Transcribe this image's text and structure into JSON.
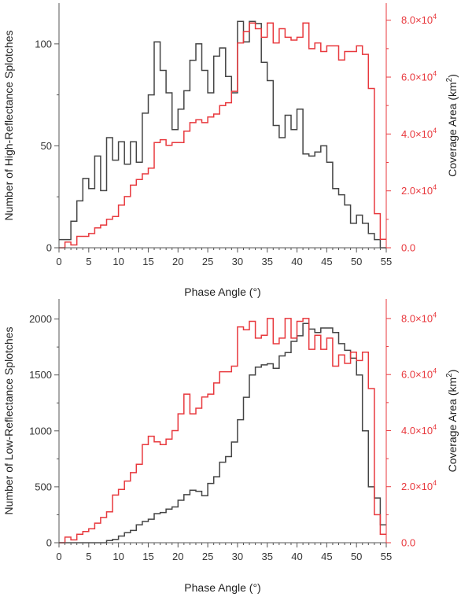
{
  "chart_data": [
    {
      "type": "histogram",
      "xlabel": "Phase Angle (°)",
      "ylabel_left": "Number of High-Reflectance Splotches",
      "ylabel_right": {
        "text": "Coverage Area (km",
        "sup": "2",
        "close": ")"
      },
      "xlim": [
        0,
        55
      ],
      "ylim_left": [
        0,
        120
      ],
      "ylim_right": [
        0,
        86000
      ],
      "x_ticks": [
        0,
        5,
        10,
        15,
        20,
        25,
        30,
        35,
        40,
        45,
        50,
        55
      ],
      "x_tick_labels": [
        "0",
        "5",
        "10",
        "15",
        "20",
        "25",
        "30",
        "35",
        "40",
        "45",
        "50",
        "55"
      ],
      "y_left_ticks": [
        0,
        50,
        100
      ],
      "y_left_tick_labels": [
        "0",
        "50",
        "100"
      ],
      "y_right_ticks": [
        0,
        20000,
        40000,
        60000,
        80000
      ],
      "y_right_tick_labels": [
        {
          "mant": "0.0",
          "exp": ""
        },
        {
          "mant": "2.0×10",
          "exp": "4"
        },
        {
          "mant": "4.0×10",
          "exp": "4"
        },
        {
          "mant": "6.0×10",
          "exp": "4"
        },
        {
          "mant": "8.0×10",
          "exp": "4"
        }
      ],
      "bin_width": 1,
      "series": [
        {
          "axis": "left",
          "color": "#444444",
          "x": [
            0,
            1,
            2,
            3,
            4,
            5,
            6,
            7,
            8,
            9,
            10,
            11,
            12,
            13,
            14,
            15,
            16,
            17,
            18,
            19,
            20,
            21,
            22,
            23,
            24,
            25,
            26,
            27,
            28,
            29,
            30,
            31,
            32,
            33,
            34,
            35,
            36,
            37,
            38,
            39,
            40,
            41,
            42,
            43,
            44,
            45,
            46,
            47,
            48,
            49,
            50,
            51,
            52,
            53,
            54
          ],
          "values": [
            4,
            4,
            13,
            23,
            34,
            29,
            45,
            28,
            54,
            43,
            52,
            41,
            52,
            42,
            66,
            75,
            101,
            87,
            76,
            58,
            68,
            77,
            92,
            100,
            87,
            76,
            94,
            98,
            84,
            76,
            111,
            101,
            111,
            110,
            91,
            82,
            60,
            54,
            65,
            58,
            68,
            46,
            45,
            47,
            50,
            42,
            29,
            26,
            21,
            12,
            16,
            12,
            7,
            4,
            0
          ]
        },
        {
          "axis": "right",
          "color": "#e8383d",
          "x": [
            0,
            1,
            2,
            3,
            4,
            5,
            6,
            7,
            8,
            9,
            10,
            11,
            12,
            13,
            14,
            15,
            16,
            17,
            18,
            19,
            20,
            21,
            22,
            23,
            24,
            25,
            26,
            27,
            28,
            29,
            30,
            31,
            32,
            33,
            34,
            35,
            36,
            37,
            38,
            39,
            40,
            41,
            42,
            43,
            44,
            45,
            46,
            47,
            48,
            49,
            50,
            51,
            52,
            53,
            54
          ],
          "values": [
            0,
            2000,
            1000,
            4000,
            4000,
            5000,
            7000,
            8000,
            10000,
            11000,
            15000,
            18000,
            22000,
            24000,
            26000,
            28000,
            37000,
            38000,
            36000,
            37000,
            37000,
            41000,
            44000,
            45000,
            44000,
            46000,
            47000,
            50000,
            51000,
            55000,
            72000,
            76000,
            79000,
            77000,
            74000,
            79000,
            72000,
            77000,
            74000,
            73000,
            74000,
            79000,
            70000,
            72000,
            69000,
            71000,
            71000,
            66000,
            69000,
            69000,
            71000,
            68000,
            56000,
            12000,
            3000
          ]
        }
      ]
    },
    {
      "type": "histogram",
      "xlabel": "Phase Angle (°)",
      "ylabel_left": "Number of Low-Reflectance Splotches",
      "ylabel_right": {
        "text": "Coverage Area (km",
        "sup": "2",
        "close": ")"
      },
      "xlim": [
        0,
        55
      ],
      "ylim_left": [
        0,
        2180
      ],
      "ylim_right": [
        0,
        87000
      ],
      "x_ticks": [
        0,
        5,
        10,
        15,
        20,
        25,
        30,
        35,
        40,
        45,
        50,
        55
      ],
      "x_tick_labels": [
        "0",
        "5",
        "10",
        "15",
        "20",
        "25",
        "30",
        "35",
        "40",
        "45",
        "50",
        "55"
      ],
      "y_left_ticks": [
        0,
        500,
        1000,
        1500,
        2000
      ],
      "y_left_tick_labels": [
        "0",
        "500",
        "1000",
        "1500",
        "2000"
      ],
      "y_right_ticks": [
        0,
        20000,
        40000,
        60000,
        80000
      ],
      "y_right_tick_labels": [
        {
          "mant": "0.0",
          "exp": ""
        },
        {
          "mant": "2.0×10",
          "exp": "4"
        },
        {
          "mant": "4.0×10",
          "exp": "4"
        },
        {
          "mant": "6.0×10",
          "exp": "4"
        },
        {
          "mant": "8.0×10",
          "exp": "4"
        }
      ],
      "bin_width": 1,
      "series": [
        {
          "axis": "left",
          "color": "#444444",
          "x": [
            0,
            1,
            2,
            3,
            4,
            5,
            6,
            7,
            8,
            9,
            10,
            11,
            12,
            13,
            14,
            15,
            16,
            17,
            18,
            19,
            20,
            21,
            22,
            23,
            24,
            25,
            26,
            27,
            28,
            29,
            30,
            31,
            32,
            33,
            34,
            35,
            36,
            37,
            38,
            39,
            40,
            41,
            42,
            43,
            44,
            45,
            46,
            47,
            48,
            49,
            50,
            51,
            52,
            53,
            54
          ],
          "values": [
            0,
            0,
            0,
            0,
            0,
            0,
            0,
            0,
            20,
            30,
            60,
            90,
            110,
            160,
            190,
            210,
            260,
            270,
            300,
            320,
            380,
            430,
            470,
            460,
            420,
            530,
            590,
            720,
            770,
            900,
            1100,
            1300,
            1500,
            1570,
            1590,
            1600,
            1560,
            1670,
            1700,
            1800,
            1850,
            1960,
            1910,
            1880,
            1920,
            1920,
            1880,
            1780,
            1720,
            1650,
            1500,
            1000,
            500,
            400,
            160
          ]
        },
        {
          "axis": "right",
          "color": "#e8383d",
          "x": [
            0,
            1,
            2,
            3,
            4,
            5,
            6,
            7,
            8,
            9,
            10,
            11,
            12,
            13,
            14,
            15,
            16,
            17,
            18,
            19,
            20,
            21,
            22,
            23,
            24,
            25,
            26,
            27,
            28,
            29,
            30,
            31,
            32,
            33,
            34,
            35,
            36,
            37,
            38,
            39,
            40,
            41,
            42,
            43,
            44,
            45,
            46,
            47,
            48,
            49,
            50,
            51,
            52,
            53,
            54
          ],
          "values": [
            0,
            2000,
            1000,
            3000,
            4000,
            5000,
            7000,
            9000,
            11000,
            17000,
            19000,
            22000,
            25000,
            28000,
            35000,
            38000,
            36000,
            35000,
            37000,
            40000,
            46000,
            53000,
            46000,
            48000,
            52000,
            53000,
            57000,
            61000,
            61000,
            63000,
            77000,
            76000,
            79000,
            73000,
            74000,
            80000,
            71000,
            73000,
            80000,
            73000,
            79000,
            80000,
            69000,
            74000,
            69000,
            73000,
            63000,
            67000,
            64000,
            68000,
            65000,
            68000,
            55000,
            10000,
            3000
          ]
        }
      ]
    }
  ]
}
